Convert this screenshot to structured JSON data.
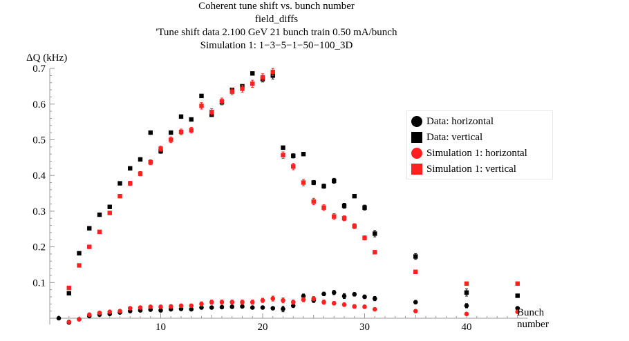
{
  "chart_data": {
    "type": "scatter",
    "title_lines": [
      "Coherent tune shift vs. bunch number",
      "field_diffs",
      "'Tune shift data 2.100 GeV  21 bunch train  0.50 mA/bunch",
      "Simulation 1: 1−3−5−1−50−100_3D"
    ],
    "ylabel": "ΔQ (kHz)",
    "xlabel_lines": [
      "Bunch",
      "number"
    ],
    "xlim": [
      -0.5,
      46
    ],
    "ylim": [
      -0.01,
      0.7
    ],
    "xticks": [
      10,
      20,
      30,
      40
    ],
    "yticks": [
      0.1,
      0.2,
      0.3,
      0.4,
      0.5,
      0.6,
      0.7
    ],
    "ytick_labels": [
      "0.1",
      "0.2",
      "0.3",
      "0.4",
      "0.5",
      "0.6",
      "0.7"
    ],
    "legend_position": "right",
    "series": [
      {
        "name": "Data: horizontal",
        "marker": "circle",
        "color": "#000000",
        "x": [
          0,
          1,
          2,
          3,
          4,
          5,
          6,
          7,
          8,
          9,
          10,
          11,
          12,
          13,
          14,
          15,
          16,
          17,
          18,
          19,
          20,
          21,
          22,
          23,
          24,
          25,
          26,
          27,
          28,
          29,
          30,
          31,
          35,
          40,
          45
        ],
        "y": [
          0.0,
          -0.012,
          -0.003,
          0.006,
          0.01,
          0.012,
          0.016,
          0.02,
          0.022,
          0.024,
          0.022,
          0.025,
          0.026,
          0.025,
          0.03,
          0.03,
          0.031,
          0.032,
          0.033,
          0.03,
          0.03,
          0.028,
          0.026,
          0.035,
          0.062,
          0.05,
          0.068,
          0.072,
          0.062,
          0.067,
          0.06,
          0.055,
          0.045,
          0.035,
          0.028
        ],
        "err": [
          0,
          0,
          0,
          0,
          0,
          0,
          0,
          0,
          0,
          0,
          0,
          0,
          0,
          0,
          0,
          0,
          0,
          0,
          0,
          0,
          0,
          0,
          0.008,
          0,
          0.006,
          0.006,
          0.005,
          0.006,
          0.007,
          0.005,
          0.005,
          0.006,
          0,
          0.006,
          0
        ]
      },
      {
        "name": "Data: vertical",
        "marker": "square",
        "color": "#000000",
        "x": [
          1,
          2,
          3,
          4,
          5,
          6,
          7,
          8,
          9,
          10,
          11,
          12,
          13,
          14,
          15,
          16,
          17,
          18,
          19,
          20,
          21,
          22,
          23,
          24,
          25,
          26,
          27,
          28,
          29,
          30,
          31,
          35,
          40,
          45
        ],
        "y": [
          0.07,
          0.182,
          0.252,
          0.29,
          0.312,
          0.378,
          0.42,
          0.445,
          0.52,
          0.468,
          0.52,
          0.565,
          0.557,
          0.623,
          0.57,
          0.605,
          0.64,
          0.65,
          0.686,
          0.67,
          0.68,
          0.478,
          0.455,
          0.46,
          0.38,
          0.37,
          0.385,
          0.315,
          0.342,
          0.31,
          0.237,
          0.173,
          0.072,
          0.063
        ],
        "err": [
          0,
          0,
          0,
          0,
          0,
          0,
          0,
          0,
          0,
          0.006,
          0,
          0,
          0,
          0,
          0,
          0.007,
          0,
          0,
          0,
          0.008,
          0.01,
          0,
          0.006,
          0.005,
          0.006,
          0.006,
          0.007,
          0.007,
          0,
          0.007,
          0.009,
          0.008,
          0.01,
          0
        ]
      },
      {
        "name": "Simulation 1: horizontal",
        "marker": "circle",
        "color": "#ff2020",
        "x": [
          1,
          2,
          3,
          4,
          5,
          6,
          7,
          8,
          9,
          10,
          11,
          12,
          13,
          14,
          15,
          16,
          17,
          18,
          19,
          20,
          21,
          22,
          23,
          24,
          25,
          26,
          27,
          28,
          29,
          30,
          31,
          35,
          40,
          45
        ],
        "y": [
          -0.01,
          -0.003,
          0.01,
          0.015,
          0.018,
          0.02,
          0.028,
          0.03,
          0.032,
          0.032,
          0.033,
          0.035,
          0.035,
          0.04,
          0.045,
          0.045,
          0.045,
          0.045,
          0.045,
          0.05,
          0.055,
          0.05,
          0.045,
          0.052,
          0.055,
          0.045,
          0.042,
          0.038,
          0.033,
          0.032,
          0.025,
          0.02,
          0.012,
          0.018
        ],
        "err": [
          0,
          0,
          0,
          0,
          0,
          0,
          0.004,
          0.004,
          0.004,
          0.004,
          0.005,
          0.005,
          0.005,
          0.006,
          0.006,
          0.006,
          0.006,
          0.006,
          0.006,
          0.006,
          0.007,
          0.007,
          0.006,
          0.006,
          0.006,
          0.006,
          0.005,
          0.005,
          0.005,
          0.005,
          0,
          0,
          0,
          0
        ]
      },
      {
        "name": "Simulation 1: vertical",
        "marker": "square",
        "color": "#ff2020",
        "x": [
          1,
          2,
          3,
          4,
          5,
          6,
          7,
          8,
          9,
          10,
          11,
          12,
          13,
          14,
          15,
          16,
          17,
          18,
          19,
          20,
          21,
          22,
          23,
          24,
          25,
          26,
          27,
          28,
          29,
          30,
          31,
          35,
          40,
          45
        ],
        "y": [
          0.085,
          0.148,
          0.2,
          0.242,
          0.295,
          0.342,
          0.378,
          0.405,
          0.437,
          0.475,
          0.5,
          0.522,
          0.527,
          0.595,
          0.578,
          0.608,
          0.635,
          0.643,
          0.657,
          0.675,
          0.69,
          0.457,
          0.425,
          0.38,
          0.327,
          0.31,
          0.285,
          0.28,
          0.258,
          0.225,
          0.185,
          0.13,
          0.097,
          0.097
        ],
        "err": [
          0,
          0,
          0,
          0,
          0,
          0,
          0.006,
          0.006,
          0.007,
          0.007,
          0.008,
          0.008,
          0.008,
          0.009,
          0.009,
          0.009,
          0.009,
          0.01,
          0.01,
          0.01,
          0.01,
          0.009,
          0.009,
          0.009,
          0.009,
          0.008,
          0.008,
          0.007,
          0.007,
          0.006,
          0.005,
          0.005,
          0.004,
          0.004
        ]
      }
    ]
  }
}
